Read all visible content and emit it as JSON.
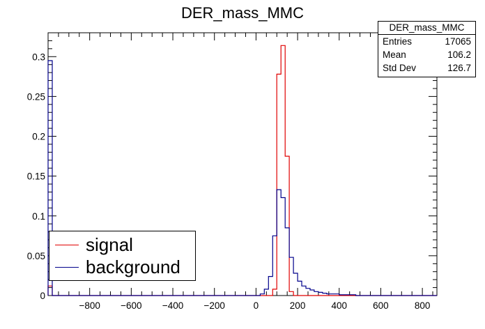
{
  "chart_data": {
    "type": "histogram",
    "title": "DER_mass_MMC",
    "xlim": [
      -1000,
      870
    ],
    "ylim": [
      0,
      0.33
    ],
    "xticks": [
      -800,
      -600,
      -400,
      -200,
      0,
      200,
      400,
      600,
      800
    ],
    "xtick_labels": [
      "−800",
      "−600",
      "−400",
      "−200",
      "0",
      "200",
      "400",
      "600",
      "800"
    ],
    "yticks": [
      0,
      0.05,
      0.1,
      0.15,
      0.2,
      0.25,
      0.3
    ],
    "ytick_labels": [
      "0",
      "0.05",
      "0.1",
      "0.15",
      "0.2",
      "0.25",
      "0.3"
    ],
    "series": [
      {
        "name": "signal",
        "color": "#e00000",
        "points": [
          [
            -1000,
            0.012
          ],
          [
            -980,
            0.0
          ],
          [
            50,
            0.0
          ],
          [
            60,
            0.0
          ],
          [
            80,
            0.008
          ],
          [
            100,
            0.278
          ],
          [
            120,
            0.314
          ],
          [
            140,
            0.175
          ],
          [
            160,
            0.005
          ],
          [
            180,
            0.0
          ],
          [
            870,
            0.0
          ]
        ]
      },
      {
        "name": "background",
        "color": "#00008b",
        "points": [
          [
            -1000,
            0.295
          ],
          [
            -980,
            0.0
          ],
          [
            0,
            0.0
          ],
          [
            20,
            0.002
          ],
          [
            40,
            0.008
          ],
          [
            60,
            0.024
          ],
          [
            80,
            0.075
          ],
          [
            100,
            0.133
          ],
          [
            120,
            0.123
          ],
          [
            140,
            0.085
          ],
          [
            160,
            0.048
          ],
          [
            180,
            0.028
          ],
          [
            200,
            0.018
          ],
          [
            220,
            0.012
          ],
          [
            240,
            0.009
          ],
          [
            260,
            0.007
          ],
          [
            280,
            0.005
          ],
          [
            300,
            0.004
          ],
          [
            320,
            0.003
          ],
          [
            340,
            0.002
          ],
          [
            360,
            0.002
          ],
          [
            380,
            0.002
          ],
          [
            400,
            0.001
          ],
          [
            420,
            0.001
          ],
          [
            440,
            0.001
          ],
          [
            460,
            0.001
          ],
          [
            480,
            0.0
          ],
          [
            870,
            0.0
          ]
        ]
      }
    ],
    "stats_box": {
      "title": "DER_mass_MMC",
      "rows": [
        {
          "label": "Entries",
          "value": "17065"
        },
        {
          "label": "Mean",
          "value": "106.2"
        },
        {
          "label": "Std Dev",
          "value": "126.7"
        }
      ]
    },
    "legend": {
      "placement": "bottom-left",
      "entries": [
        {
          "label": "signal",
          "color": "#e00000"
        },
        {
          "label": "background",
          "color": "#00008b"
        }
      ]
    }
  }
}
